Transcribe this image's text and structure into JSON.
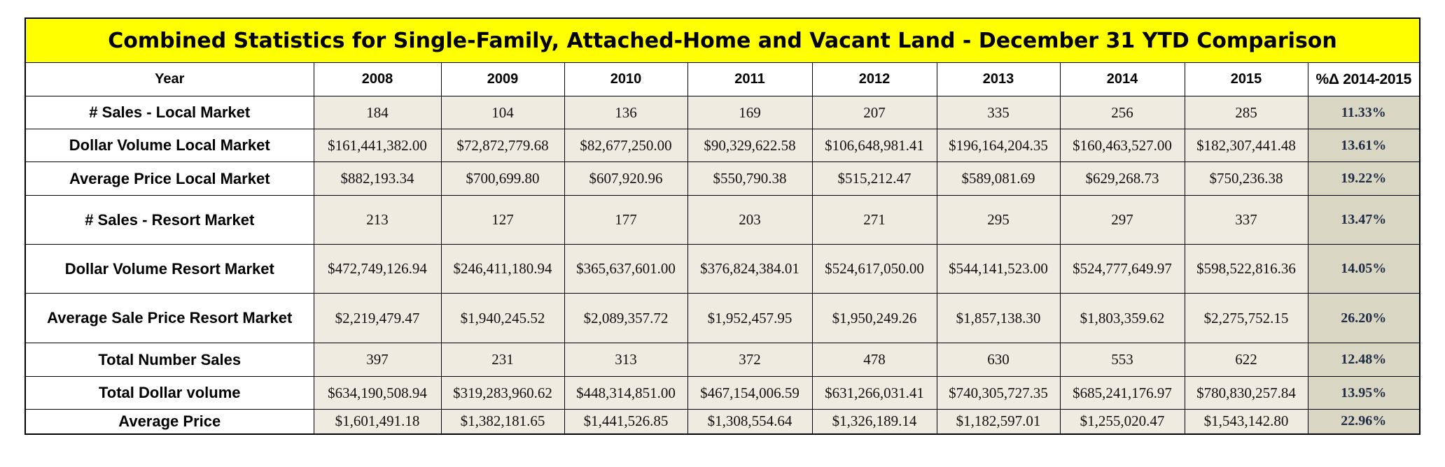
{
  "title": "Combined Statistics for Single-Family, Attached-Home and Vacant Land - December 31 YTD Comparison",
  "header": {
    "year_label": "Year",
    "years": [
      "2008",
      "2009",
      "2010",
      "2011",
      "2012",
      "2013",
      "2014",
      "2015"
    ],
    "pct_label": "%Δ 2014-2015"
  },
  "rows": [
    {
      "label": "# Sales - Local Market",
      "values": [
        "184",
        "104",
        "136",
        "169",
        "207",
        "335",
        "256",
        "285"
      ],
      "pct": "11.33%"
    },
    {
      "label": "Dollar Volume Local Market",
      "values": [
        "$161,441,382.00",
        "$72,872,779.68",
        "$82,677,250.00",
        "$90,329,622.58",
        "$106,648,981.41",
        "$196,164,204.35",
        "$160,463,527.00",
        "$182,307,441.48"
      ],
      "pct": "13.61%"
    },
    {
      "label": "Average Price Local Market",
      "values": [
        "$882,193.34",
        "$700,699.80",
        "$607,920.96",
        "$550,790.38",
        "$515,212.47",
        "$589,081.69",
        "$629,268.73",
        "$750,236.38"
      ],
      "pct": "19.22%"
    },
    {
      "label": "# Sales - Resort Market",
      "values": [
        "213",
        "127",
        "177",
        "203",
        "271",
        "295",
        "297",
        "337"
      ],
      "pct": "13.47%"
    },
    {
      "label": "Dollar Volume Resort Market",
      "values": [
        "$472,749,126.94",
        "$246,411,180.94",
        "$365,637,601.00",
        "$376,824,384.01",
        "$524,617,050.00",
        "$544,141,523.00",
        "$524,777,649.97",
        "$598,522,816.36"
      ],
      "pct": "14.05%"
    },
    {
      "label": "Average Sale Price Resort Market",
      "values": [
        "$2,219,479.47",
        "$1,940,245.52",
        "$2,089,357.72",
        "$1,952,457.95",
        "$1,950,249.26",
        "$1,857,138.30",
        "$1,803,359.62",
        "$2,275,752.15"
      ],
      "pct": "26.20%"
    },
    {
      "label": "Total Number Sales",
      "values": [
        "397",
        "231",
        "313",
        "372",
        "478",
        "630",
        "553",
        "622"
      ],
      "pct": "12.48%"
    },
    {
      "label": "Total Dollar volume",
      "values": [
        "$634,190,508.94",
        "$319,283,960.62",
        "$448,314,851.00",
        "$467,154,006.59",
        "$631,266,031.41",
        "$740,305,727.35",
        "$685,241,176.97",
        "$780,830,257.84"
      ],
      "pct": "13.95%"
    },
    {
      "label": "Average Price",
      "values": [
        "$1,601,491.18",
        "$1,382,181.65",
        "$1,441,526.85",
        "$1,308,554.64",
        "$1,326,189.14",
        "$1,182,597.01",
        "$1,255,020.47",
        "$1,543,142.80"
      ],
      "pct": "22.96%"
    }
  ]
}
